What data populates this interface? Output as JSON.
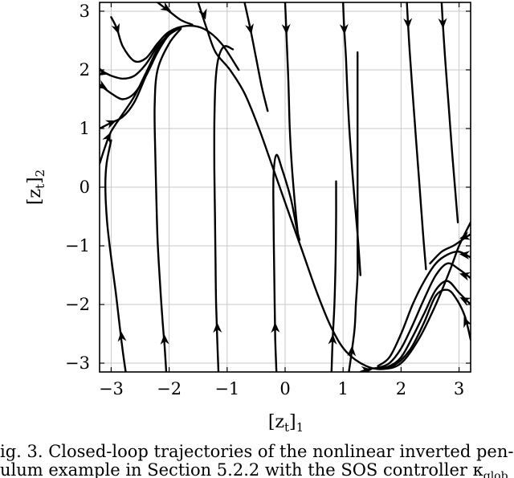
{
  "chart_data": {
    "type": "line",
    "xlabel": "[z_t]_1",
    "ylabel": "[z_t]_2",
    "xlabel_main": "[z",
    "xlabel_sub": "t",
    "xlabel_close": "]",
    "xlabel_index": "1",
    "ylabel_main": "[z",
    "ylabel_sub": "t",
    "ylabel_close": "]",
    "ylabel_index": "2",
    "xlim": [
      -3.2,
      3.2
    ],
    "ylim": [
      -3.15,
      3.15
    ],
    "xticks": [
      -3,
      -2,
      -1,
      0,
      1,
      2,
      3
    ],
    "yticks": [
      -3,
      -2,
      -1,
      0,
      1,
      2,
      3
    ],
    "xtick_labels": [
      "−3",
      "−2",
      "−1",
      "0",
      "1",
      "2",
      "3"
    ],
    "ytick_labels": [
      "−3",
      "−2",
      "−1",
      "0",
      "1",
      "2",
      "3"
    ],
    "grid": true,
    "series": [
      {
        "points": [
          [
            -3.0,
            2.9
          ],
          [
            -2.9,
            2.7
          ],
          [
            -2.8,
            2.4
          ],
          [
            -2.6,
            2.15
          ],
          [
            -2.4,
            2.2
          ],
          [
            -2.2,
            2.45
          ],
          [
            -2.0,
            2.65
          ],
          [
            -1.7,
            2.75
          ],
          [
            -1.4,
            2.7
          ],
          [
            -1.1,
            2.45
          ],
          [
            -0.8,
            2.0
          ]
        ],
        "arrows": [
          [
            -2.9,
            2.7,
            0.3,
            -0.9
          ]
        ]
      },
      {
        "points": [
          [
            -3.2,
            2.0
          ],
          [
            -3.0,
            1.9
          ],
          [
            -2.8,
            1.85
          ],
          [
            -2.6,
            1.9
          ],
          [
            -2.4,
            2.1
          ],
          [
            -2.2,
            2.4
          ],
          [
            -2.0,
            2.6
          ],
          [
            -1.8,
            2.72
          ]
        ],
        "arrows": [
          [
            -3.15,
            1.95,
            1,
            -0.3
          ]
        ]
      },
      {
        "points": [
          [
            -3.2,
            1.75
          ],
          [
            -3.0,
            1.6
          ],
          [
            -2.8,
            1.5
          ],
          [
            -2.6,
            1.6
          ],
          [
            -2.4,
            1.9
          ],
          [
            -2.2,
            2.3
          ],
          [
            -2.0,
            2.6
          ],
          [
            -1.8,
            2.72
          ]
        ],
        "arrows": [
          [
            -3.15,
            1.72,
            1,
            -0.6
          ]
        ]
      },
      {
        "points": [
          [
            -3.2,
            1.0
          ],
          [
            -3.0,
            1.1
          ],
          [
            -2.8,
            1.2
          ],
          [
            -2.6,
            1.45
          ],
          [
            -2.4,
            1.9
          ],
          [
            -2.2,
            2.35
          ],
          [
            -2.0,
            2.62
          ],
          [
            -1.8,
            2.72
          ]
        ],
        "arrows": [
          [
            -3.0,
            1.1,
            1,
            0.4
          ]
        ]
      },
      {
        "points": [
          [
            -3.2,
            0.4
          ],
          [
            -3.1,
            0.7
          ],
          [
            -3.0,
            0.95
          ],
          [
            -2.8,
            1.25
          ],
          [
            -2.6,
            1.55
          ],
          [
            -2.4,
            1.95
          ],
          [
            -2.2,
            2.35
          ],
          [
            -2.0,
            2.62
          ],
          [
            -1.8,
            2.72
          ]
        ],
        "arrows": [
          [
            -3.05,
            0.85,
            0.5,
            1
          ]
        ]
      },
      {
        "points": [
          [
            -2.2,
            3.15
          ],
          [
            -2.0,
            3.0
          ],
          [
            -1.8,
            2.85
          ],
          [
            -1.6,
            2.77
          ]
        ],
        "arrows": [
          [
            -2.05,
            3.05,
            1,
            -0.6
          ]
        ]
      },
      {
        "points": [
          [
            -1.5,
            3.15
          ],
          [
            -1.35,
            2.7
          ],
          [
            -1.2,
            2.3
          ],
          [
            -0.95,
            2.0
          ],
          [
            -0.7,
            1.6
          ],
          [
            -0.45,
            1.0
          ],
          [
            -0.2,
            0.3
          ],
          [
            0.05,
            -0.4
          ],
          [
            0.3,
            -1.1
          ],
          [
            0.55,
            -1.8
          ],
          [
            0.8,
            -2.4
          ],
          [
            1.05,
            -2.8
          ],
          [
            1.4,
            -3.05
          ],
          [
            1.7,
            -3.1
          ],
          [
            2.0,
            -3.0
          ],
          [
            2.3,
            -2.6
          ],
          [
            2.6,
            -2.0
          ],
          [
            2.85,
            -1.4
          ],
          [
            3.0,
            -1.0
          ],
          [
            3.2,
            -0.6
          ]
        ],
        "arrows": [
          [
            -1.4,
            2.95,
            0.3,
            -1
          ]
        ]
      },
      {
        "points": [
          [
            -0.7,
            3.15
          ],
          [
            -0.6,
            2.7
          ],
          [
            -0.5,
            2.2
          ],
          [
            -0.4,
            1.7
          ],
          [
            -0.3,
            1.3
          ]
        ],
        "arrows": [
          [
            -0.6,
            2.7,
            0.2,
            -1
          ]
        ]
      },
      {
        "points": [
          [
            0.0,
            3.15
          ],
          [
            0.02,
            2.7
          ],
          [
            0.04,
            2.2
          ],
          [
            0.06,
            1.7
          ],
          [
            0.08,
            1.0
          ],
          [
            0.12,
            0.3
          ],
          [
            0.18,
            -0.4
          ],
          [
            0.22,
            -0.8
          ]
        ],
        "arrows": [
          [
            0.02,
            2.7,
            0.05,
            -1
          ]
        ]
      },
      {
        "points": [
          [
            1.0,
            3.15
          ],
          [
            1.02,
            2.7
          ],
          [
            1.05,
            2.2
          ],
          [
            1.08,
            1.5
          ],
          [
            1.12,
            0.8
          ],
          [
            1.18,
            0.0
          ],
          [
            1.25,
            -0.8
          ],
          [
            1.3,
            -1.5
          ]
        ],
        "arrows": [
          [
            1.02,
            2.7,
            0.05,
            -1
          ]
        ]
      },
      {
        "points": [
          [
            2.1,
            3.15
          ],
          [
            2.12,
            2.8
          ],
          [
            2.15,
            2.3
          ],
          [
            2.2,
            1.6
          ],
          [
            2.26,
            0.8
          ],
          [
            2.32,
            0.0
          ],
          [
            2.38,
            -0.8
          ],
          [
            2.43,
            -1.4
          ]
        ],
        "arrows": [
          [
            2.12,
            2.8,
            0.05,
            -1
          ]
        ]
      },
      {
        "points": [
          [
            2.7,
            3.15
          ],
          [
            2.72,
            2.8
          ],
          [
            2.76,
            2.2
          ],
          [
            2.82,
            1.4
          ],
          [
            2.88,
            0.6
          ],
          [
            2.93,
            0.0
          ],
          [
            2.98,
            -0.6
          ]
        ],
        "arrows": [
          [
            2.72,
            2.8,
            0.05,
            -1
          ]
        ]
      },
      {
        "points": [
          [
            -2.75,
            -3.15
          ],
          [
            -2.8,
            -2.8
          ],
          [
            -2.85,
            -2.4
          ],
          [
            -2.92,
            -1.8
          ],
          [
            -3.0,
            -1.2
          ],
          [
            -3.07,
            -0.6
          ],
          [
            -3.1,
            0.0
          ],
          [
            -3.08,
            0.4
          ],
          [
            -3.0,
            0.8
          ]
        ],
        "arrows": [
          [
            -2.82,
            -2.55,
            -0.1,
            1
          ]
        ]
      },
      {
        "points": [
          [
            -2.05,
            -3.15
          ],
          [
            -2.08,
            -2.7
          ],
          [
            -2.12,
            -2.2
          ],
          [
            -2.16,
            -1.6
          ],
          [
            -2.2,
            -0.9
          ],
          [
            -2.22,
            -0.2
          ],
          [
            -2.24,
            0.6
          ],
          [
            -2.25,
            1.4
          ],
          [
            -2.2,
            2.0
          ],
          [
            -2.0,
            2.45
          ],
          [
            -1.8,
            2.7
          ]
        ],
        "arrows": [
          [
            -2.08,
            -2.6,
            -0.05,
            1
          ]
        ]
      },
      {
        "points": [
          [
            -1.15,
            -3.15
          ],
          [
            -1.17,
            -2.6
          ],
          [
            -1.19,
            -2.0
          ],
          [
            -1.2,
            -1.3
          ],
          [
            -1.21,
            -0.5
          ],
          [
            -1.22,
            0.3
          ],
          [
            -1.22,
            1.1
          ],
          [
            -1.2,
            1.8
          ],
          [
            -1.15,
            2.2
          ],
          [
            -1.05,
            2.4
          ],
          [
            -0.9,
            2.35
          ]
        ],
        "arrows": [
          [
            -1.17,
            -2.4,
            -0.03,
            1
          ]
        ]
      },
      {
        "points": [
          [
            -0.15,
            -3.15
          ],
          [
            -0.17,
            -2.6
          ],
          [
            -0.18,
            -2.0
          ],
          [
            -0.19,
            -1.3
          ],
          [
            -0.2,
            -0.5
          ],
          [
            -0.2,
            0.2
          ],
          [
            -0.15,
            0.55
          ],
          [
            -0.05,
            0.3
          ],
          [
            0.1,
            -0.2
          ],
          [
            0.2,
            -0.7
          ],
          [
            0.25,
            -0.9
          ]
        ],
        "arrows": [
          [
            -0.17,
            -2.4,
            -0.03,
            1
          ]
        ]
      },
      {
        "points": [
          [
            0.8,
            -3.15
          ],
          [
            0.82,
            -2.6
          ],
          [
            0.85,
            -2.0
          ],
          [
            0.87,
            -1.3
          ],
          [
            0.88,
            -0.5
          ],
          [
            0.88,
            0.1
          ]
        ],
        "arrows": [
          [
            0.82,
            -2.6,
            0.03,
            1
          ]
        ]
      },
      {
        "points": [
          [
            1.1,
            -3.15
          ],
          [
            1.15,
            -2.8
          ],
          [
            1.2,
            -2.4
          ],
          [
            1.22,
            -2.0
          ],
          [
            1.25,
            -1.5
          ],
          [
            1.25,
            -1.0
          ],
          [
            1.25,
            1.2
          ],
          [
            1.25,
            2.3
          ]
        ],
        "arrows": [
          [
            1.15,
            -2.8,
            0.05,
            1
          ]
        ]
      },
      {
        "points": [
          [
            3.2,
            -1.2
          ],
          [
            3.0,
            -1.1
          ],
          [
            2.8,
            -1.15
          ],
          [
            2.6,
            -1.3
          ],
          [
            2.4,
            -1.6
          ],
          [
            2.2,
            -2.0
          ],
          [
            2.0,
            -2.5
          ],
          [
            1.8,
            -2.9
          ],
          [
            1.6,
            -3.05
          ]
        ],
        "arrows": [
          [
            3.1,
            -1.15,
            -1,
            0.1
          ]
        ]
      },
      {
        "points": [
          [
            3.2,
            -1.55
          ],
          [
            3.0,
            -1.4
          ],
          [
            2.8,
            -1.3
          ],
          [
            2.6,
            -1.5
          ],
          [
            2.4,
            -1.9
          ],
          [
            2.2,
            -2.35
          ],
          [
            2.0,
            -2.75
          ],
          [
            1.8,
            -3.0
          ],
          [
            1.6,
            -3.08
          ]
        ],
        "arrows": [
          [
            3.1,
            -1.5,
            -1,
            0.3
          ]
        ]
      },
      {
        "points": [
          [
            3.2,
            -2.0
          ],
          [
            3.0,
            -1.8
          ],
          [
            2.8,
            -1.6
          ],
          [
            2.6,
            -1.75
          ],
          [
            2.4,
            -2.15
          ],
          [
            2.2,
            -2.55
          ],
          [
            2.0,
            -2.9
          ],
          [
            1.8,
            -3.05
          ],
          [
            1.6,
            -3.1
          ]
        ],
        "arrows": [
          [
            3.1,
            -1.92,
            -1,
            0.5
          ]
        ]
      },
      {
        "points": [
          [
            3.2,
            -2.6
          ],
          [
            3.1,
            -2.2
          ],
          [
            2.95,
            -1.9
          ],
          [
            2.8,
            -1.75
          ],
          [
            2.6,
            -1.85
          ],
          [
            2.4,
            -2.3
          ],
          [
            2.2,
            -2.7
          ],
          [
            2.0,
            -2.95
          ],
          [
            1.8,
            -3.08
          ]
        ],
        "arrows": [
          [
            3.12,
            -2.3,
            -0.4,
            1
          ]
        ]
      },
      {
        "points": [
          [
            3.2,
            -0.8
          ],
          [
            3.05,
            -0.9
          ],
          [
            2.9,
            -1.0
          ],
          [
            2.7,
            -1.1
          ],
          [
            2.5,
            -1.3
          ]
        ],
        "arrows": [
          [
            3.1,
            -0.85,
            -1,
            -0.3
          ]
        ]
      },
      {
        "points": [
          [
            1.3,
            -3.15
          ],
          [
            1.45,
            -3.1
          ],
          [
            1.6,
            -3.08
          ]
        ],
        "arrows": [
          [
            1.4,
            -3.12,
            1,
            0.1
          ]
        ]
      }
    ]
  },
  "caption": {
    "line1": "ig. 3. Closed-loop trajectories of the nonlinear inverted pen-",
    "line2": "ulum example in Section 5.2.2 with the SOS controller κ",
    "subscript": "glob"
  }
}
